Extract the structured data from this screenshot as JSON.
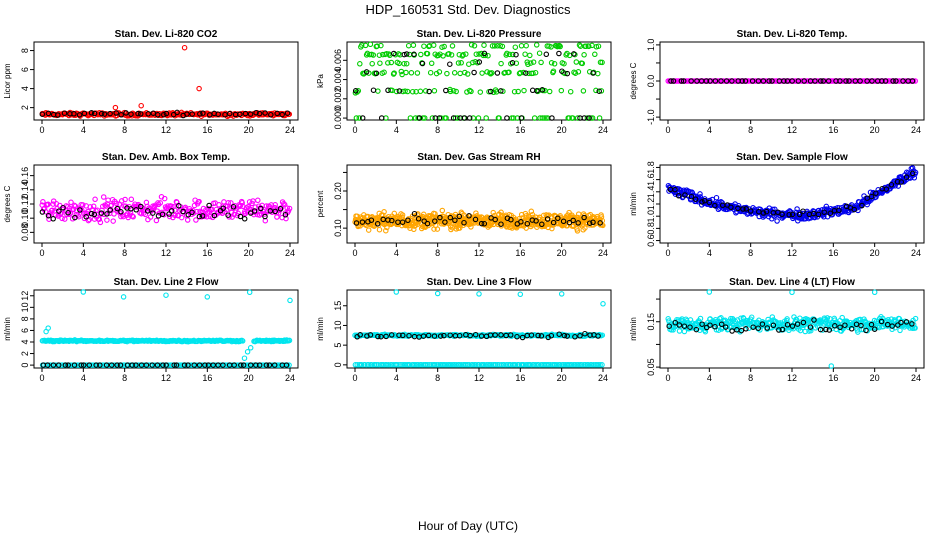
{
  "title": "HDP_160531  Std. Dev. Diagnostics",
  "x_axis_label": "Hour of Day (UTC)",
  "chart_data": [
    {
      "type": "scatter",
      "title": "Stan. Dev. Li-820 CO2",
      "ylabel": "Licor ppm",
      "xlim": [
        0,
        24
      ],
      "ylim": [
        0.7,
        8.9
      ],
      "xticks": [
        0,
        4,
        8,
        12,
        16,
        20,
        24
      ],
      "yticks": [
        2,
        4,
        6,
        8
      ],
      "ytick_labels": [
        "2",
        "4",
        "6",
        "8"
      ],
      "series": [
        {
          "name": "main",
          "color": "#ff0000",
          "n": 260,
          "base": 1.3,
          "noise": 0.25,
          "outliers": [
            [
              13.8,
              8.3
            ],
            [
              15.2,
              4.0
            ],
            [
              9.6,
              2.2
            ],
            [
              7.1,
              2.0
            ]
          ]
        },
        {
          "name": "hourly",
          "color": "#000000",
          "n": 48,
          "base": 1.35,
          "noise": 0.2
        }
      ]
    },
    {
      "type": "scatter",
      "title": "Stan. Dev. Li-820 Pressure",
      "ylabel": "kPa",
      "xlim": [
        0,
        24
      ],
      "ylim": [
        -0.0002,
        0.0079
      ],
      "xticks": [
        0,
        4,
        8,
        12,
        16,
        20,
        24
      ],
      "yticks": [
        0,
        0.002,
        0.004,
        0.006
      ],
      "ytick_labels": [
        "0.000",
        "0.002",
        "0.004",
        "0.006"
      ],
      "series": [
        {
          "name": "main",
          "color": "#00cc00",
          "n": 260,
          "levels": [
            0,
            0.0028,
            0.0047,
            0.0057,
            0.0066,
            0.0075
          ]
        },
        {
          "name": "hourly",
          "color": "#000000",
          "n": 48,
          "levels": [
            0,
            0,
            0,
            0.0028,
            0.0047,
            0.0057,
            0.0066
          ]
        }
      ]
    },
    {
      "type": "scatter",
      "title": "Stan. Dev. Li-820 Temp.",
      "ylabel": "degrees C",
      "xlim": [
        0,
        24
      ],
      "ylim": [
        -1.08,
        1.08
      ],
      "xticks": [
        0,
        4,
        8,
        12,
        16,
        20,
        24
      ],
      "yticks": [
        -1,
        -0.5,
        0,
        0.5,
        1
      ],
      "ytick_labels": [
        "-1.0",
        "",
        "0.0",
        "",
        "1.0"
      ],
      "series": [
        {
          "name": "main",
          "color": "#ff00ff",
          "n": 200,
          "base": 0,
          "noise": 0
        },
        {
          "name": "hourly",
          "color": "#000000",
          "n": 48,
          "base": 0,
          "noise": 0
        }
      ]
    },
    {
      "type": "scatter",
      "title": "Stan. Dev. Amb. Box Temp.",
      "ylabel": "degrees C",
      "xlim": [
        0,
        24
      ],
      "ylim": [
        0.065,
        0.175
      ],
      "xticks": [
        0,
        4,
        8,
        12,
        16,
        20,
        24
      ],
      "yticks": [
        0.08,
        0.1,
        0.12,
        0.14,
        0.16
      ],
      "ytick_labels": [
        "0.08",
        "0.10",
        "0.12",
        "0.14",
        "0.16"
      ],
      "series": [
        {
          "name": "main",
          "color": "#ff00ff",
          "n": 300,
          "base": 0.112,
          "noise": 0.022
        },
        {
          "name": "hourly",
          "color": "#000000",
          "n": 48,
          "base": 0.108,
          "noise": 0.015
        }
      ]
    },
    {
      "type": "scatter",
      "title": "Stan. Dev. Gas Stream RH",
      "ylabel": "percent",
      "xlim": [
        0,
        24
      ],
      "ylim": [
        0.06,
        0.27
      ],
      "xticks": [
        0,
        4,
        8,
        12,
        16,
        20,
        24
      ],
      "yticks": [
        0.1,
        0.15,
        0.2,
        0.25
      ],
      "ytick_labels": [
        "0.10",
        "",
        "0.20",
        ""
      ],
      "series": [
        {
          "name": "main",
          "color": "#ffa500",
          "n": 600,
          "base": 0.12,
          "noise": 0.03
        },
        {
          "name": "hourly",
          "color": "#000000",
          "n": 48,
          "base": 0.118,
          "noise": 0.022
        }
      ]
    },
    {
      "type": "scatter",
      "title": "Stan. Dev. Sample Flow",
      "ylabel": "ml/min",
      "xlim": [
        0,
        24
      ],
      "ylim": [
        0.56,
        1.84
      ],
      "xticks": [
        0,
        4,
        8,
        12,
        16,
        20,
        24
      ],
      "yticks": [
        0.6,
        0.8,
        1.0,
        1.2,
        1.4,
        1.6,
        1.8
      ],
      "ytick_labels": [
        "0.6",
        "0.8",
        "1.0",
        "1.2",
        "1.4",
        "1.6",
        "1.8"
      ],
      "series": [
        {
          "name": "main",
          "color": "#0000ee",
          "n": 400,
          "curve": "u",
          "noise": 0.12
        },
        {
          "name": "hourly",
          "color": "#000000",
          "n": 48,
          "curve": "u",
          "noise": 0.08
        }
      ]
    },
    {
      "type": "scatter",
      "title": "Stan. Dev. Line 2 Flow",
      "ylabel": "ml/min",
      "xlim": [
        0,
        24
      ],
      "ylim": [
        -0.5,
        13
      ],
      "xticks": [
        0,
        4,
        8,
        12,
        16,
        20,
        24
      ],
      "yticks": [
        0,
        2,
        4,
        6,
        8,
        10,
        12
      ],
      "ytick_labels": [
        "0",
        "2",
        "4",
        "6",
        "8",
        "10",
        "12"
      ],
      "series": [
        {
          "name": "main",
          "color": "#00e5ee",
          "n": 260,
          "base": 4.2,
          "noise": 0.2,
          "gaps": [
            [
              19.5,
              20.5
            ]
          ],
          "outliers": [
            [
              4.0,
              12.7
            ],
            [
              7.9,
              11.8
            ],
            [
              12.0,
              12.1
            ],
            [
              16.0,
              11.8
            ],
            [
              20.1,
              12.6
            ],
            [
              24.0,
              11.2
            ],
            [
              0.4,
              5.8
            ],
            [
              0.6,
              6.4
            ],
            [
              19.6,
              1.2
            ],
            [
              19.9,
              2.3
            ],
            [
              20.2,
              3.0
            ]
          ]
        },
        {
          "name": "zero",
          "color": "#00e5ee",
          "n": 150,
          "base": 0,
          "noise": 0
        },
        {
          "name": "hourly",
          "color": "#000000",
          "n": 48,
          "base": 0,
          "noise": 0
        }
      ]
    },
    {
      "type": "scatter",
      "title": "Stan. Dev. Line 3 Flow",
      "ylabel": "ml/min",
      "xlim": [
        0,
        24
      ],
      "ylim": [
        -0.8,
        19
      ],
      "xticks": [
        0,
        4,
        8,
        12,
        16,
        20,
        24
      ],
      "yticks": [
        0,
        5,
        10,
        15
      ],
      "ytick_labels": [
        "0",
        "5",
        "10",
        "15"
      ],
      "series": [
        {
          "name": "main",
          "color": "#00e5ee",
          "n": 260,
          "base": 7.5,
          "noise": 0.35,
          "outliers": [
            [
              4.0,
              18.5
            ],
            [
              8.0,
              18.1
            ],
            [
              12.0,
              18.0
            ],
            [
              16.0,
              17.9
            ],
            [
              20.0,
              18.0
            ],
            [
              24.0,
              15.5
            ]
          ]
        },
        {
          "name": "zero",
          "color": "#00e5ee",
          "n": 150,
          "base": 0,
          "noise": 0
        },
        {
          "name": "hourly",
          "color": "#000000",
          "n": 48,
          "base": 7.4,
          "noise": 0.6
        }
      ]
    },
    {
      "type": "scatter",
      "title": "Stan. Dev. Line 4 (LT) Flow",
      "ylabel": "ml/min",
      "xlim": [
        0,
        24
      ],
      "ylim": [
        0.048,
        0.22
      ],
      "xticks": [
        0,
        4,
        8,
        12,
        16,
        20,
        24
      ],
      "yticks": [
        0.05,
        0.1,
        0.15,
        0.2
      ],
      "ytick_labels": [
        "0.05",
        "",
        "0.15",
        ""
      ],
      "series": [
        {
          "name": "main",
          "color": "#00e5ee",
          "n": 400,
          "base": 0.145,
          "noise": 0.022,
          "outliers": [
            [
              4.0,
              0.22
            ],
            [
              12.0,
              0.215
            ],
            [
              20.0,
              0.215
            ],
            [
              15.8,
              0.05
            ]
          ]
        },
        {
          "name": "hourly",
          "color": "#000000",
          "n": 48,
          "base": 0.14,
          "noise": 0.018
        }
      ]
    }
  ]
}
